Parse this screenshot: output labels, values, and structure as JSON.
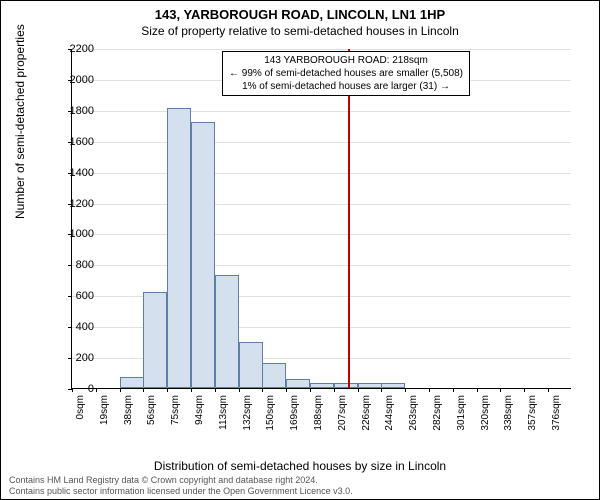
{
  "title_main": "143, YARBOROUGH ROAD, LINCOLN, LN1 1HP",
  "title_sub": "Size of property relative to semi-detached houses in Lincoln",
  "chart": {
    "type": "histogram",
    "x_unit": "sqm",
    "y_label": "Number of semi-detached properties",
    "x_label": "Distribution of semi-detached houses by size in Lincoln",
    "ylim": [
      0,
      2200
    ],
    "ytick_step": 200,
    "x_categories": [
      0,
      19,
      38,
      56,
      75,
      94,
      113,
      132,
      150,
      169,
      188,
      207,
      226,
      244,
      263,
      282,
      301,
      320,
      338,
      357,
      376
    ],
    "bin_width": 19,
    "bar_values": [
      0,
      0,
      70,
      620,
      1810,
      1720,
      730,
      300,
      160,
      60,
      30,
      30,
      30,
      30,
      0,
      0,
      0,
      0,
      0,
      0,
      0
    ],
    "bar_fill": "#d5e0ef",
    "bar_border": "#5b7fa8",
    "grid_color": "#e0e0e0",
    "background_color": "#ffffff",
    "reference_value": 218,
    "reference_color": "#c00000",
    "annotation": {
      "line1": "143 YARBOROUGH ROAD: 218sqm",
      "line2": "← 99% of semi-detached houses are smaller (5,508)",
      "line3": "1% of semi-detached houses are larger (31) →",
      "border_color": "#000000"
    },
    "title_fontsize": 13,
    "label_fontsize": 12,
    "tick_fontsize": 10
  },
  "footer": {
    "line1": "Contains HM Land Registry data © Crown copyright and database right 2024.",
    "line2": "Contains public sector information licensed under the Open Government Licence v3.0."
  }
}
